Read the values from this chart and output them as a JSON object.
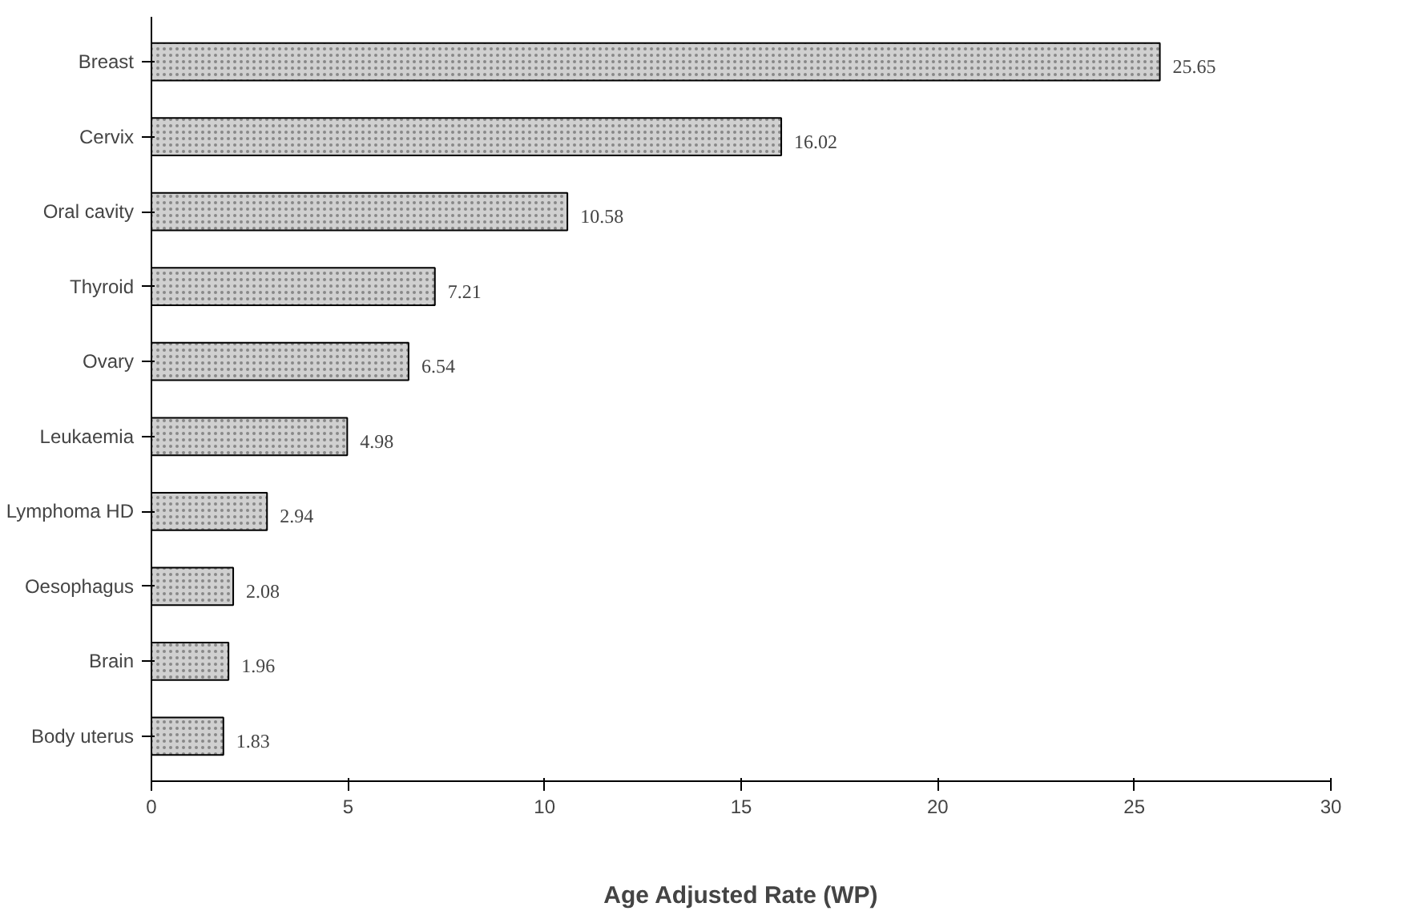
{
  "chart_data": {
    "type": "bar",
    "orientation": "horizontal",
    "xlabel": "Age Adjusted Rate (WP)",
    "categories": [
      "Breast",
      "Cervix",
      "Oral cavity",
      "Thyroid",
      "Ovary",
      "Leukaemia",
      "Lymphoma HD",
      "Oesophagus",
      "Brain",
      "Body uterus"
    ],
    "values": [
      25.65,
      16.02,
      10.58,
      7.21,
      6.54,
      4.98,
      2.94,
      2.08,
      1.96,
      1.83
    ],
    "color": "#d0d0d0",
    "xlim": [
      0,
      30
    ],
    "xticks": [
      0,
      5,
      10,
      15,
      20,
      25,
      30
    ],
    "data_labels": true,
    "grid": false
  }
}
